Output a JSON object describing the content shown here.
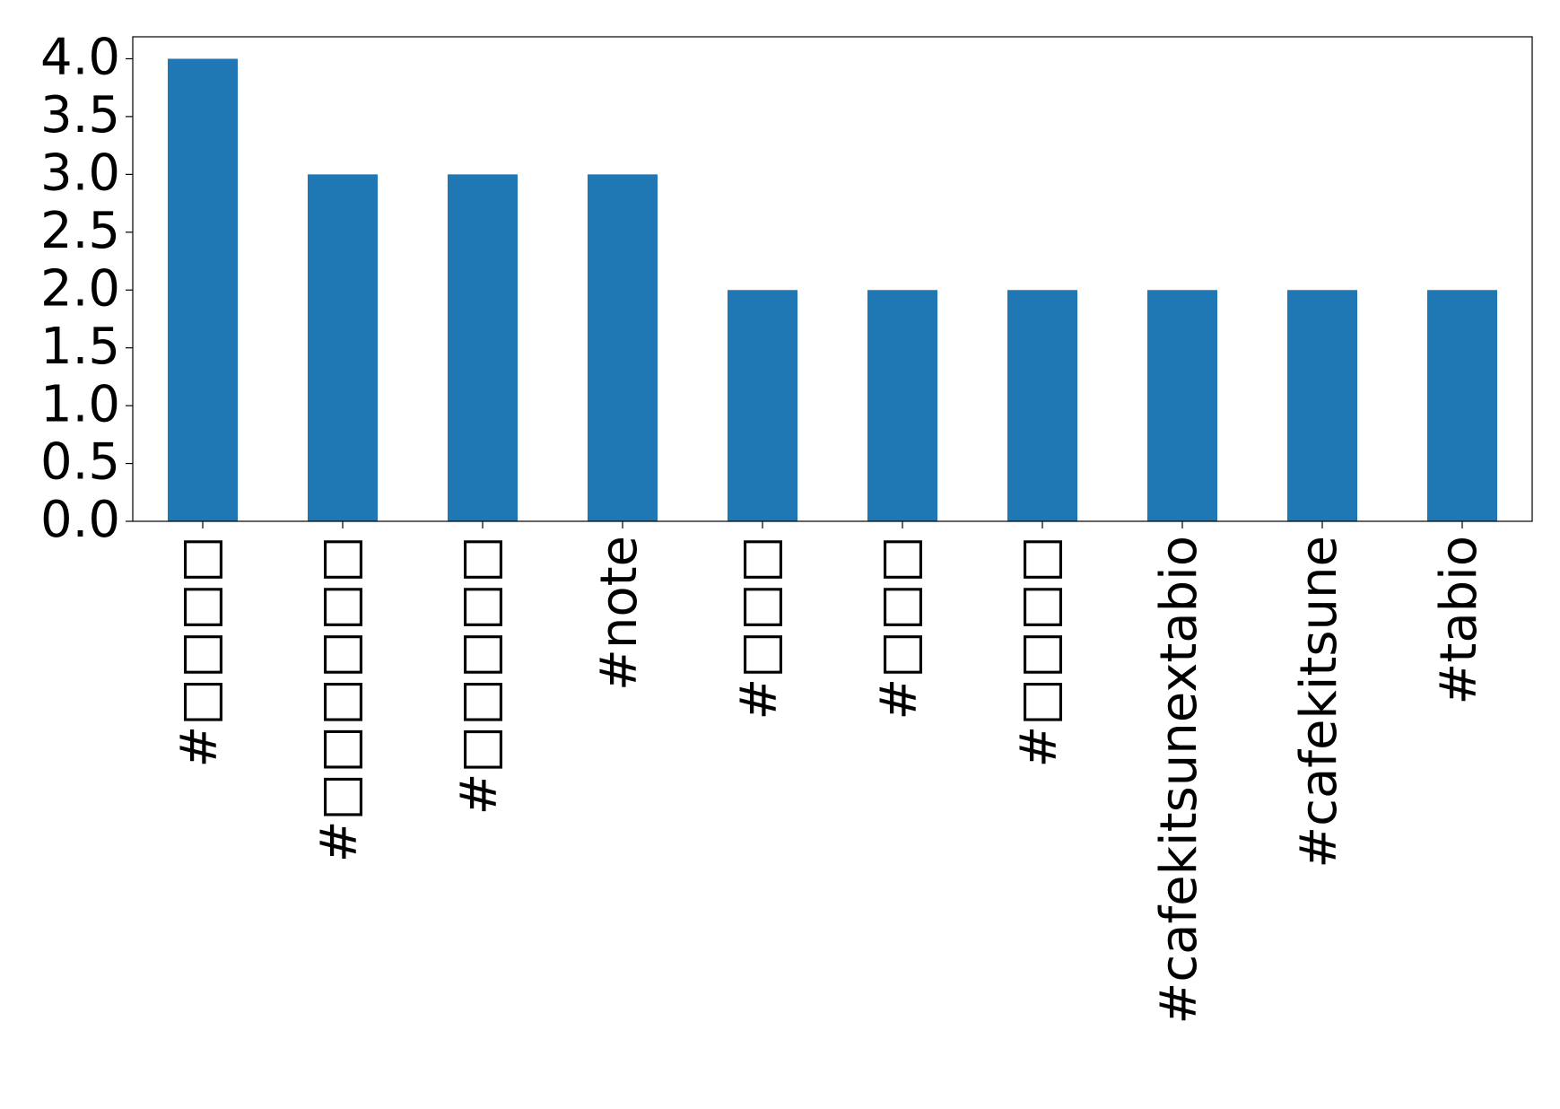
{
  "chart_data": {
    "type": "bar",
    "categories": [
      "#□□□□",
      "#□□□□□□",
      "#□□□□□",
      "#note",
      "#□□□",
      "#□□□",
      "#□□□□",
      "#cafekitsunextabio",
      "#cafekitsune",
      "#tabio"
    ],
    "values": [
      4,
      3,
      3,
      3,
      2,
      2,
      2,
      2,
      2,
      2
    ],
    "color": "#1f77b4",
    "ylim": [
      0,
      4.19
    ],
    "yticks": [
      {
        "value": 0,
        "label": "0.0"
      },
      0.5,
      {
        "value": 1,
        "label": "1.0"
      },
      1.5,
      {
        "value": 2,
        "label": "2.0"
      },
      2.5,
      {
        "value": 3,
        "label": "3.0"
      },
      3.5,
      {
        "value": 4,
        "label": "4.0"
      }
    ],
    "grid": false
  }
}
